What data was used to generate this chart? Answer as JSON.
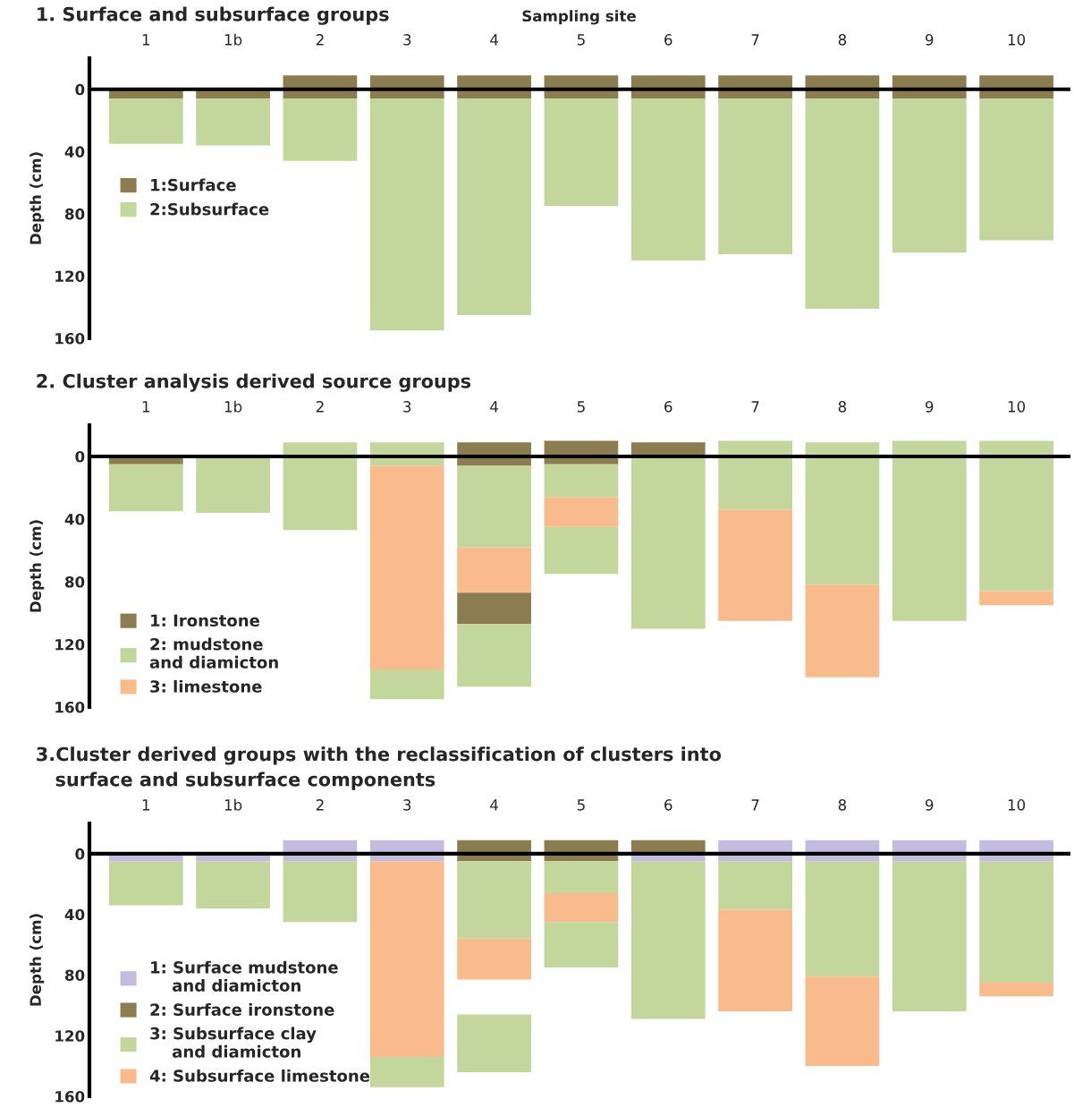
{
  "chart_data": [
    {
      "type": "bar",
      "title": "1. Surface and subsurface groups",
      "xlabel": "Sampling site",
      "ylabel": "Depth (cm)",
      "categories": [
        "1",
        "1b",
        "2",
        "3",
        "4",
        "5",
        "6",
        "7",
        "8",
        "9",
        "10"
      ],
      "series": [
        {
          "name": "1:Surface",
          "color": "#8b7d4f",
          "base": [
            0,
            0,
            -9,
            -9,
            -9,
            -9,
            -9,
            -9,
            -9,
            -9,
            -9
          ],
          "values": [
            6,
            6,
            15,
            15,
            15,
            15,
            15,
            15,
            15,
            15,
            15
          ]
        },
        {
          "name": "2:Subsurface",
          "color": "#c3d69b",
          "base": [
            6,
            6,
            6,
            6,
            6,
            6,
            6,
            6,
            6,
            6,
            6
          ],
          "values": [
            29,
            30,
            40,
            149,
            139,
            69,
            104,
            100,
            135,
            99,
            91
          ]
        }
      ],
      "ylim": [
        160,
        -20
      ],
      "yticks": [
        0,
        40,
        80,
        120,
        160
      ],
      "legend": "center left"
    },
    {
      "type": "bar",
      "title": "2. Cluster analysis derived source groups",
      "ylabel": "Depth (cm)",
      "categories": [
        "1",
        "1b",
        "2",
        "3",
        "4",
        "5",
        "6",
        "7",
        "8",
        "9",
        "10"
      ],
      "series": [
        {
          "name": "1: Ironstone",
          "color": "#8b7d4f",
          "base": [
            0,
            null,
            null,
            null,
            -9,
            -10,
            -9,
            null,
            null,
            null,
            null
          ],
          "values": [
            5,
            null,
            null,
            null,
            15,
            15,
            9,
            null,
            null,
            null,
            null
          ]
        },
        {
          "name": "2: mudstone\nand diamicton",
          "color": "#c3d69b",
          "base": [
            5,
            0,
            -9,
            -9,
            6,
            5,
            0,
            -10,
            -9,
            -10,
            -10
          ],
          "values": [
            30,
            36,
            56,
            15,
            52,
            21,
            110,
            44,
            91,
            115,
            96
          ]
        },
        {
          "name": "3: limestone",
          "color": "#f9bb8b",
          "base": [
            null,
            null,
            null,
            6,
            58,
            26,
            null,
            34,
            82,
            null,
            86
          ],
          "values": [
            null,
            null,
            null,
            130,
            29,
            19,
            null,
            71,
            59,
            null,
            9
          ]
        },
        {
          "color": "#8b7d4f",
          "base": [
            null,
            null,
            null,
            null,
            87,
            null,
            null,
            null,
            null,
            null,
            null
          ],
          "values": [
            null,
            null,
            null,
            null,
            20,
            null,
            null,
            null,
            null,
            null,
            null
          ]
        },
        {
          "color": "#c3d69b",
          "base": [
            null,
            null,
            null,
            136,
            107,
            45,
            null,
            null,
            null,
            null,
            null
          ],
          "values": [
            null,
            null,
            null,
            19,
            40,
            30,
            null,
            null,
            null,
            null,
            null
          ]
        }
      ],
      "ylim": [
        160,
        -20
      ],
      "yticks": [
        0,
        40,
        80,
        120,
        160
      ],
      "legend": "lower left"
    },
    {
      "type": "bar",
      "title": "3.Cluster derived groups with the reclassification of clusters into\n   surface and subsurface components",
      "ylabel": "Depth (cm)",
      "categories": [
        "1",
        "1b",
        "2",
        "3",
        "4",
        "5",
        "6",
        "7",
        "8",
        "9",
        "10"
      ],
      "series": [
        {
          "name": "1: Surface mudstone\n    and diamicton",
          "color": "#c4bce0",
          "base": [
            0,
            0,
            -9,
            -9,
            null,
            null,
            0,
            -9,
            -9,
            -9,
            -9
          ],
          "values": [
            5,
            5,
            14,
            14,
            null,
            null,
            5,
            14,
            14,
            14,
            14
          ]
        },
        {
          "name": "2: Surface ironstone",
          "color": "#8b7d4f",
          "base": [
            null,
            null,
            null,
            null,
            -9,
            -9,
            -9,
            null,
            null,
            null,
            null
          ],
          "values": [
            null,
            null,
            null,
            null,
            14,
            14,
            9,
            null,
            null,
            null,
            null
          ]
        },
        {
          "name": "3: Subsurface clay\n    and diamicton",
          "color": "#c3d69b",
          "base": [
            5,
            5,
            5,
            134,
            5,
            5,
            5,
            5,
            5,
            5,
            5
          ],
          "values": [
            29,
            31,
            40,
            20,
            51,
            21,
            104,
            32,
            76,
            99,
            80
          ]
        },
        {
          "name": "4: Subsurface limestone",
          "color": "#f9bb8b",
          "base": [
            null,
            null,
            null,
            5,
            56,
            26,
            null,
            37,
            81,
            null,
            85
          ],
          "values": [
            null,
            null,
            null,
            129,
            27,
            19,
            null,
            67,
            59,
            null,
            9
          ]
        },
        {
          "color": "#c3d69b",
          "base": [
            null,
            null,
            null,
            null,
            106,
            45,
            null,
            null,
            null,
            null,
            null
          ],
          "values": [
            null,
            null,
            null,
            null,
            38,
            30,
            null,
            null,
            null,
            null,
            null
          ]
        }
      ],
      "ylim": [
        160,
        -20
      ],
      "yticks": [
        0,
        40,
        80,
        120,
        160
      ],
      "legend": "lower left"
    }
  ]
}
